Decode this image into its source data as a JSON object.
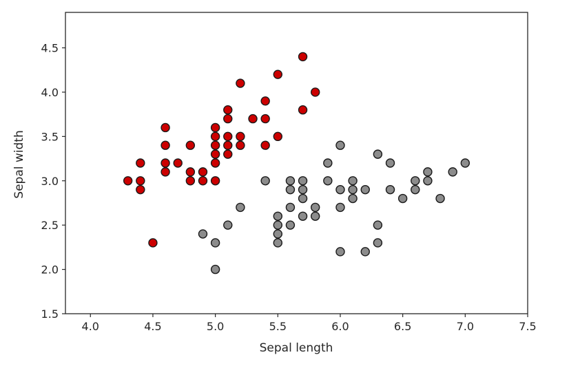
{
  "chart_data": {
    "type": "scatter",
    "xlabel": "Sepal length",
    "ylabel": "Sepal width",
    "xlim": [
      3.8,
      7.5
    ],
    "ylim": [
      1.5,
      4.9
    ],
    "xticks": [
      "4.0",
      "4.5",
      "5.0",
      "5.5",
      "6.0",
      "6.5",
      "7.0",
      "7.5"
    ],
    "yticks": [
      "1.5",
      "2.0",
      "2.5",
      "3.0",
      "3.5",
      "4.0",
      "4.5"
    ],
    "grid": false,
    "legend": "none",
    "series": [
      {
        "color": "#cc0000",
        "points": [
          [
            5.7,
            4.4
          ],
          [
            5.5,
            4.2
          ],
          [
            5.2,
            4.1
          ],
          [
            5.8,
            4.0
          ],
          [
            5.4,
            3.9
          ],
          [
            5.1,
            3.8
          ],
          [
            5.7,
            3.8
          ],
          [
            5.1,
            3.7
          ],
          [
            5.3,
            3.7
          ],
          [
            5.4,
            3.7
          ],
          [
            4.6,
            3.6
          ],
          [
            5.0,
            3.6
          ],
          [
            5.0,
            3.5
          ],
          [
            5.1,
            3.5
          ],
          [
            5.2,
            3.5
          ],
          [
            5.5,
            3.5
          ],
          [
            4.6,
            3.4
          ],
          [
            4.8,
            3.4
          ],
          [
            5.0,
            3.4
          ],
          [
            5.1,
            3.4
          ],
          [
            5.2,
            3.4
          ],
          [
            5.4,
            3.4
          ],
          [
            5.0,
            3.3
          ],
          [
            5.1,
            3.3
          ],
          [
            4.4,
            3.2
          ],
          [
            4.6,
            3.2
          ],
          [
            4.7,
            3.2
          ],
          [
            5.0,
            3.2
          ],
          [
            4.6,
            3.1
          ],
          [
            4.8,
            3.1
          ],
          [
            4.9,
            3.1
          ],
          [
            4.3,
            3.0
          ],
          [
            4.4,
            3.0
          ],
          [
            4.8,
            3.0
          ],
          [
            4.9,
            3.0
          ],
          [
            5.0,
            3.0
          ],
          [
            4.4,
            2.9
          ],
          [
            4.5,
            2.3
          ]
        ]
      },
      {
        "color": "#8c8c8c",
        "points": [
          [
            6.0,
            3.4
          ],
          [
            6.3,
            3.3
          ],
          [
            5.9,
            3.2
          ],
          [
            6.4,
            3.2
          ],
          [
            7.0,
            3.2
          ],
          [
            6.7,
            3.1
          ],
          [
            6.9,
            3.1
          ],
          [
            5.4,
            3.0
          ],
          [
            5.6,
            3.0
          ],
          [
            5.7,
            3.0
          ],
          [
            5.9,
            3.0
          ],
          [
            6.1,
            3.0
          ],
          [
            6.6,
            3.0
          ],
          [
            6.7,
            3.0
          ],
          [
            5.6,
            2.9
          ],
          [
            5.7,
            2.9
          ],
          [
            6.0,
            2.9
          ],
          [
            6.1,
            2.9
          ],
          [
            6.2,
            2.9
          ],
          [
            6.4,
            2.9
          ],
          [
            6.6,
            2.9
          ],
          [
            5.7,
            2.8
          ],
          [
            6.1,
            2.8
          ],
          [
            6.5,
            2.8
          ],
          [
            6.8,
            2.8
          ],
          [
            5.2,
            2.7
          ],
          [
            5.6,
            2.7
          ],
          [
            5.8,
            2.7
          ],
          [
            6.0,
            2.7
          ],
          [
            5.5,
            2.6
          ],
          [
            5.7,
            2.6
          ],
          [
            5.8,
            2.6
          ],
          [
            5.1,
            2.5
          ],
          [
            5.5,
            2.5
          ],
          [
            5.6,
            2.5
          ],
          [
            6.3,
            2.5
          ],
          [
            4.9,
            2.4
          ],
          [
            5.5,
            2.4
          ],
          [
            5.0,
            2.3
          ],
          [
            5.5,
            2.3
          ],
          [
            6.3,
            2.3
          ],
          [
            6.0,
            2.2
          ],
          [
            6.2,
            2.2
          ],
          [
            5.0,
            2.0
          ]
        ]
      }
    ]
  }
}
